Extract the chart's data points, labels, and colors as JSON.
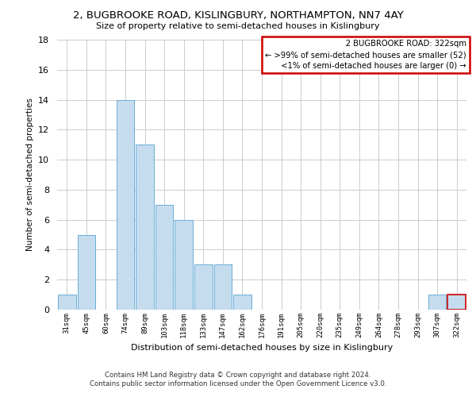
{
  "title": "2, BUGBROOKE ROAD, KISLINGBURY, NORTHAMPTON, NN7 4AY",
  "subtitle": "Size of property relative to semi-detached houses in Kislingbury",
  "xlabel": "Distribution of semi-detached houses by size in Kislingbury",
  "ylabel": "Number of semi-detached properties",
  "footnote1": "Contains HM Land Registry data © Crown copyright and database right 2024.",
  "footnote2": "Contains public sector information licensed under the Open Government Licence v3.0.",
  "bin_labels": [
    "31sqm",
    "45sqm",
    "60sqm",
    "74sqm",
    "89sqm",
    "103sqm",
    "118sqm",
    "133sqm",
    "147sqm",
    "162sqm",
    "176sqm",
    "191sqm",
    "205sqm",
    "220sqm",
    "235sqm",
    "249sqm",
    "264sqm",
    "278sqm",
    "293sqm",
    "307sqm",
    "322sqm"
  ],
  "bar_values": [
    1,
    5,
    0,
    14,
    11,
    7,
    6,
    3,
    3,
    1,
    0,
    0,
    0,
    0,
    0,
    0,
    0,
    0,
    0,
    1,
    1
  ],
  "bar_color": "#c5dcef",
  "bar_edge_color": "#6aaed6",
  "highlight_bar_index": 20,
  "highlight_bar_edge_color": "#cc0000",
  "ylim": [
    0,
    18
  ],
  "yticks": [
    0,
    2,
    4,
    6,
    8,
    10,
    12,
    14,
    16,
    18
  ],
  "annotation_title": "2 BUGBROOKE ROAD: 322sqm",
  "annotation_line1": "← >99% of semi-detached houses are smaller (52)",
  "annotation_line2": "<1% of semi-detached houses are larger (0) →",
  "annotation_box_color": "#ffffff",
  "annotation_box_edge_color": "#cc0000",
  "background_color": "#ffffff",
  "grid_color": "#cccccc"
}
